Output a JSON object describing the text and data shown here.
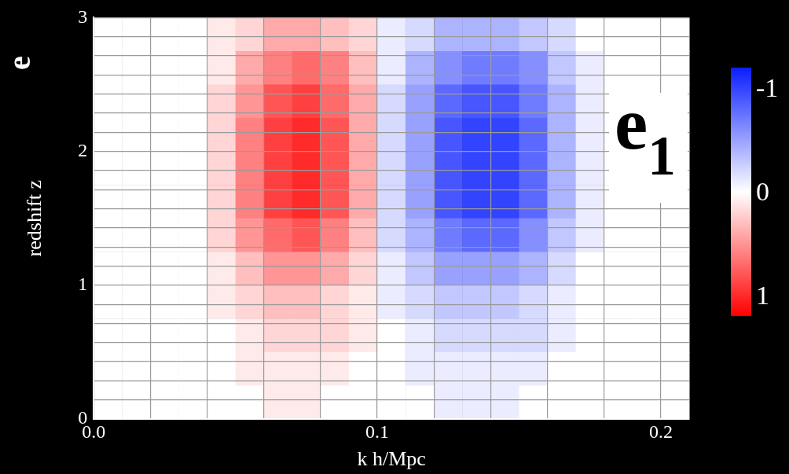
{
  "chart_data": {
    "type": "heatmap",
    "xlabel": "k h/Mpc",
    "ylabel": "redshift z",
    "annotations": [
      "e",
      "e$_{1}$"
    ],
    "xlim": [
      0,
      0.21
    ],
    "ylim": [
      0,
      3
    ],
    "xticks": [
      {
        "value": 0,
        "label": "0.0"
      },
      {
        "value": 0.02,
        "label": null
      },
      {
        "value": 0.04,
        "label": null
      },
      {
        "value": 0.06,
        "label": null
      },
      {
        "value": 0.08,
        "label": null
      },
      {
        "value": 0.1,
        "label": "0.1"
      },
      {
        "value": 0.12,
        "label": null
      },
      {
        "value": 0.14,
        "label": null
      },
      {
        "value": 0.16,
        "label": null
      },
      {
        "value": 0.18,
        "label": null
      },
      {
        "value": 0.2,
        "label": "0.2"
      }
    ],
    "yticks": [
      0,
      {
        "value": 0.143,
        "label": null
      },
      {
        "value": 0.286,
        "label": null
      },
      {
        "value": 0.429,
        "label": null
      },
      {
        "value": 0.571,
        "label": null
      },
      {
        "value": 0.714,
        "label": null
      },
      {
        "value": 0.857,
        "label": null
      },
      1,
      {
        "value": 1.143,
        "label": null
      },
      {
        "value": 1.286,
        "label": null
      },
      {
        "value": 1.429,
        "label": null
      },
      {
        "value": 1.571,
        "label": null
      },
      {
        "value": 1.714,
        "label": null
      },
      {
        "value": 1.857,
        "label": null
      },
      2,
      {
        "value": 2.143,
        "label": null
      },
      {
        "value": 2.286,
        "label": null
      },
      {
        "value": 2.429,
        "label": null
      },
      {
        "value": 2.571,
        "label": null
      },
      {
        "value": 2.714,
        "label": null
      },
      {
        "value": 2.857,
        "label": null
      },
      3
    ],
    "grid": true,
    "clim": [
      1.2,
      -1.2
    ],
    "cticks": [
      -1,
      0,
      1
    ],
    "cells": [
      [
        0,
        0,
        0,
        0,
        0.1,
        0.2,
        0.4,
        0.4,
        0.3,
        0.2,
        -0.1,
        -0.2,
        -0.4,
        -0.4,
        -0.4,
        -0.3,
        -0.2,
        0,
        0,
        0,
        0
      ],
      [
        0,
        0,
        0,
        0,
        0.1,
        0.4,
        0.6,
        0.7,
        0.6,
        0.3,
        -0.1,
        -0.4,
        -0.6,
        -0.7,
        -0.7,
        -0.6,
        -0.3,
        -0.1,
        0,
        0,
        0
      ],
      [
        0,
        0,
        0,
        0,
        0.2,
        0.5,
        0.8,
        0.9,
        0.7,
        0.4,
        -0.2,
        -0.5,
        -0.8,
        -0.9,
        -0.9,
        -0.7,
        -0.4,
        -0.1,
        0,
        0,
        0
      ],
      [
        0,
        0,
        0,
        0,
        0.2,
        0.6,
        0.9,
        1,
        0.8,
        0.4,
        -0.2,
        -0.5,
        -0.9,
        -1,
        -1,
        -0.8,
        -0.4,
        -0.1,
        0,
        0,
        0
      ],
      [
        0,
        0,
        0,
        0,
        0.2,
        0.6,
        0.9,
        1,
        0.8,
        0.4,
        -0.2,
        -0.5,
        -0.9,
        -1,
        -1,
        -0.8,
        -0.4,
        -0.1,
        0,
        0,
        0
      ],
      [
        0,
        0,
        0,
        0,
        0.2,
        0.6,
        0.9,
        1,
        0.8,
        0.4,
        -0.2,
        -0.5,
        -0.9,
        -1,
        -1,
        -0.8,
        -0.4,
        -0.1,
        0,
        0,
        0
      ],
      [
        0,
        0,
        0,
        0,
        0.2,
        0.5,
        0.7,
        0.8,
        0.6,
        0.3,
        -0.2,
        -0.4,
        -0.7,
        -0.8,
        -0.8,
        -0.6,
        -0.3,
        -0.1,
        0,
        0,
        0
      ],
      [
        0,
        0,
        0,
        0,
        0.1,
        0.3,
        0.5,
        0.5,
        0.4,
        0.2,
        -0.1,
        -0.3,
        -0.5,
        -0.5,
        -0.5,
        -0.4,
        -0.2,
        0,
        0,
        0,
        0
      ],
      [
        0,
        0,
        0,
        0,
        0.1,
        0.2,
        0.3,
        0.3,
        0.2,
        0.1,
        -0.1,
        -0.2,
        -0.3,
        -0.3,
        -0.3,
        -0.2,
        -0.1,
        0,
        0,
        0,
        0
      ],
      [
        0,
        0,
        0,
        0,
        0,
        0.1,
        0.2,
        0.2,
        0.2,
        0.1,
        0,
        -0.1,
        -0.2,
        -0.2,
        -0.2,
        -0.2,
        -0.1,
        0,
        0,
        0,
        0
      ],
      [
        0,
        0,
        0,
        0,
        0,
        0.1,
        0.1,
        0.1,
        0.1,
        0,
        0,
        -0.1,
        -0.1,
        -0.1,
        -0.1,
        -0.1,
        0,
        0,
        0,
        0,
        0
      ],
      [
        0,
        0,
        0,
        0,
        0,
        0,
        0.1,
        0.1,
        0,
        0,
        0,
        0,
        -0.1,
        -0.1,
        -0.1,
        0,
        0,
        0,
        0,
        0,
        0
      ]
    ]
  }
}
